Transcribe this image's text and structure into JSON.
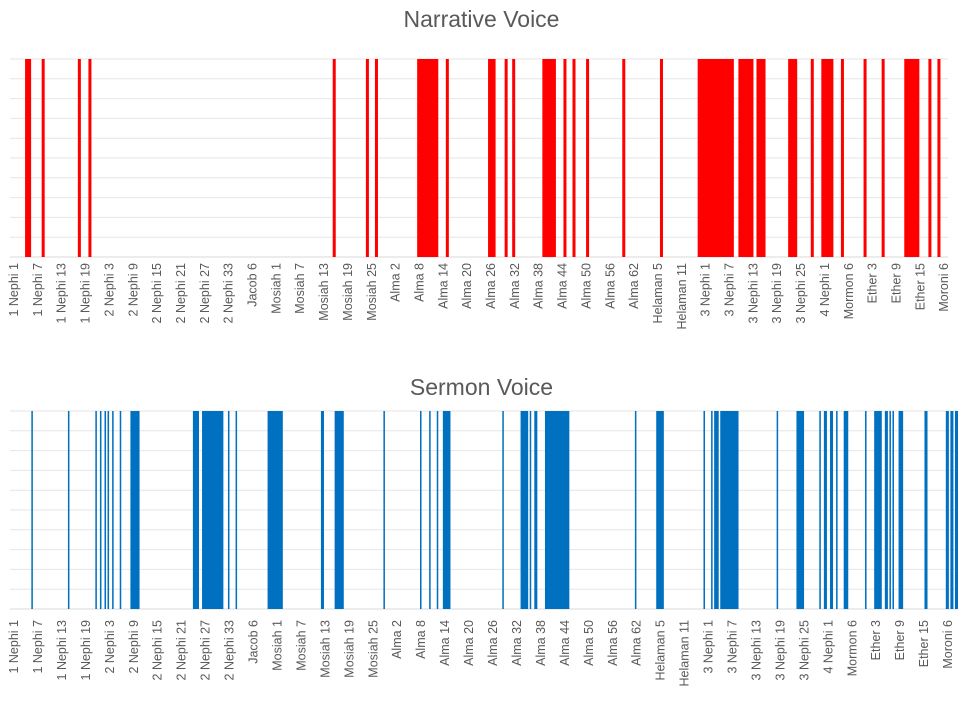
{
  "chart_data": [
    {
      "type": "bar",
      "title": "Narrative Voice",
      "color": "#FF0000",
      "categories": [
        "1 Nephi 1",
        "1 Nephi 7",
        "1 Nephi 13",
        "1 Nephi 19",
        "2 Nephi 3",
        "2 Nephi 9",
        "2 Nephi 15",
        "2 Nephi 21",
        "2 Nephi 27",
        "2 Nephi 33",
        "Jacob 6",
        "Mosiah 1",
        "Mosiah 7",
        "Mosiah 13",
        "Mosiah 19",
        "Mosiah 25",
        "Alma 2",
        "Alma 8",
        "Alma 14",
        "Alma 20",
        "Alma 26",
        "Alma 32",
        "Alma 38",
        "Alma 44",
        "Alma 50",
        "Alma 56",
        "Alma 62",
        "Helaman 5",
        "Helaman 11",
        "3 Nephi 1",
        "3 Nephi 7",
        "3 Nephi 13",
        "3 Nephi 19",
        "3 Nephi 25",
        "4 Nephi 1",
        "Mormon 6",
        "Ether 3",
        "Ether 9",
        "Ether 15",
        "Moroni 6"
      ],
      "bars": [
        [
          10,
          14
        ],
        [
          21,
          23
        ],
        [
          45,
          47
        ],
        [
          52,
          54
        ],
        [
          214,
          216
        ],
        [
          236,
          238
        ],
        [
          242,
          244
        ],
        [
          270,
          284
        ],
        [
          289,
          291
        ],
        [
          317,
          322
        ],
        [
          328,
          330
        ],
        [
          333,
          335
        ],
        [
          353,
          362
        ],
        [
          367,
          369
        ],
        [
          373,
          375
        ],
        [
          382,
          384
        ],
        [
          406,
          408
        ],
        [
          431,
          433
        ],
        [
          456,
          480
        ],
        [
          483,
          493
        ],
        [
          495,
          501
        ],
        [
          516,
          522
        ],
        [
          531,
          533
        ],
        [
          538,
          546
        ],
        [
          551,
          553
        ],
        [
          566,
          568
        ],
        [
          578,
          580
        ],
        [
          593,
          603
        ],
        [
          609,
          611
        ],
        [
          615,
          617
        ]
      ],
      "bar_count": 622,
      "ylim": [
        0,
        1
      ],
      "grid": true
    },
    {
      "type": "bar",
      "title": "Sermon Voice",
      "color": "#0070C0",
      "categories": [
        "1 Nephi 1",
        "1 Nephi 7",
        "1 Nephi 13",
        "1 Nephi 19",
        "2 Nephi 3",
        "2 Nephi 9",
        "2 Nephi 15",
        "2 Nephi 21",
        "2 Nephi 27",
        "2 Nephi 33",
        "Jacob 6",
        "Mosiah 1",
        "Mosiah 7",
        "Mosiah 13",
        "Mosiah 19",
        "Mosiah 25",
        "Alma 2",
        "Alma 8",
        "Alma 14",
        "Alma 20",
        "Alma 26",
        "Alma 32",
        "Alma 38",
        "Alma 44",
        "Alma 50",
        "Alma 56",
        "Alma 62",
        "Helaman 5",
        "Helaman 11",
        "3 Nephi 1",
        "3 Nephi 7",
        "3 Nephi 13",
        "3 Nephi 19",
        "3 Nephi 25",
        "4 Nephi 1",
        "Mormon 6",
        "Ether 3",
        "Ether 9",
        "Ether 15",
        "Moroni 6"
      ],
      "bars": [
        [
          14,
          15
        ],
        [
          38,
          39
        ],
        [
          56,
          57
        ],
        [
          59,
          60
        ],
        [
          62,
          63
        ],
        [
          64,
          65
        ],
        [
          67,
          68
        ],
        [
          72,
          73
        ],
        [
          79,
          85
        ],
        [
          120,
          124
        ],
        [
          126,
          140
        ],
        [
          143,
          144
        ],
        [
          148,
          149
        ],
        [
          169,
          179
        ],
        [
          204,
          206
        ],
        [
          213,
          219
        ],
        [
          245,
          246
        ],
        [
          269,
          270
        ],
        [
          275,
          276
        ],
        [
          280,
          281
        ],
        [
          284,
          289
        ],
        [
          323,
          324
        ],
        [
          335,
          340
        ],
        [
          341,
          342
        ],
        [
          344,
          346
        ],
        [
          351,
          367
        ],
        [
          410,
          411
        ],
        [
          424,
          429
        ],
        [
          455,
          456
        ],
        [
          460,
          461
        ],
        [
          462,
          465
        ],
        [
          466,
          478
        ],
        [
          503,
          504
        ],
        [
          516,
          521
        ],
        [
          531,
          532
        ],
        [
          534,
          536
        ],
        [
          538,
          540
        ],
        [
          542,
          543
        ],
        [
          547,
          550
        ],
        [
          561,
          562
        ],
        [
          567,
          572
        ],
        [
          574,
          576
        ],
        [
          577,
          578
        ],
        [
          579,
          580
        ],
        [
          583,
          586
        ],
        [
          600,
          602
        ],
        [
          614,
          616
        ],
        [
          617,
          619
        ],
        [
          620,
          622
        ]
      ],
      "bar_count": 622,
      "ylim": [
        0,
        1
      ],
      "grid": true
    }
  ]
}
